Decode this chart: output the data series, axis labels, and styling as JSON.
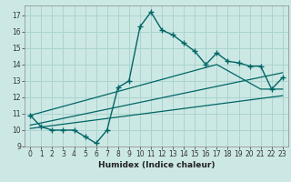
{
  "xlabel": "Humidex (Indice chaleur)",
  "background_color": "#cce8e4",
  "grid_color": "#aad4ce",
  "line_color": "#006666",
  "xlim": [
    -0.5,
    23.5
  ],
  "ylim": [
    9,
    17.6
  ],
  "yticks": [
    9,
    10,
    11,
    12,
    13,
    14,
    15,
    16,
    17
  ],
  "xticks": [
    0,
    1,
    2,
    3,
    4,
    5,
    6,
    7,
    8,
    9,
    10,
    11,
    12,
    13,
    14,
    15,
    16,
    17,
    18,
    19,
    20,
    21,
    22,
    23
  ],
  "line1_x": [
    0,
    1,
    2,
    3,
    4,
    5,
    6,
    7,
    8,
    9,
    10,
    11,
    12,
    13,
    14,
    15,
    16,
    17,
    18,
    19,
    20,
    21,
    22,
    23
  ],
  "line1_y": [
    10.9,
    10.2,
    10.0,
    10.0,
    10.0,
    9.6,
    9.2,
    10.0,
    12.6,
    13.0,
    16.3,
    17.2,
    16.1,
    15.8,
    15.3,
    14.8,
    14.0,
    14.7,
    14.2,
    14.1,
    13.9,
    13.9,
    12.5,
    13.2
  ],
  "line2_x": [
    0,
    23
  ],
  "line2_y": [
    10.1,
    12.1
  ],
  "line3_x": [
    0,
    23
  ],
  "line3_y": [
    10.3,
    13.5
  ],
  "line4_x": [
    0,
    17,
    21,
    23
  ],
  "line4_y": [
    10.9,
    14.0,
    12.5,
    12.5
  ],
  "tick_fontsize": 5.5,
  "xlabel_fontsize": 6.5
}
